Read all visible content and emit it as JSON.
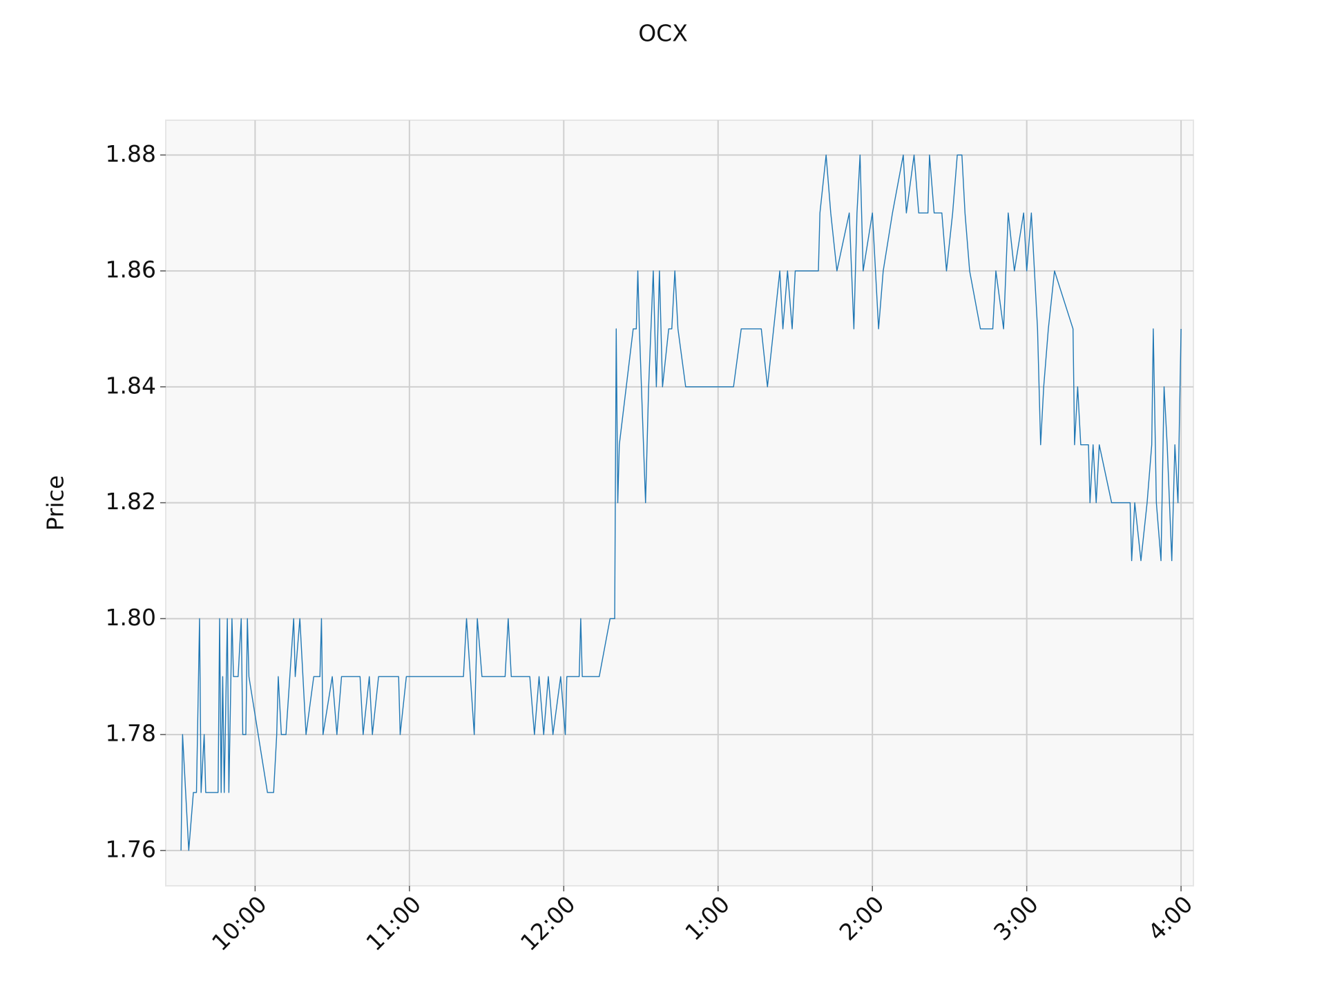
{
  "chart_data": {
    "type": "line",
    "title": "OCX",
    "y_label": "Price",
    "xlim": [
      9.421,
      16.08
    ],
    "ylim": [
      1.7539,
      1.886
    ],
    "xticks": [
      {
        "value": 10,
        "label": "10:00"
      },
      {
        "value": 11,
        "label": "11:00"
      },
      {
        "value": 12,
        "label": "12:00"
      },
      {
        "value": 13,
        "label": "1:00"
      },
      {
        "value": 14,
        "label": "2:00"
      },
      {
        "value": 15,
        "label": "3:00"
      },
      {
        "value": 16,
        "label": "4:00"
      }
    ],
    "yticks": [
      {
        "value": 1.76,
        "label": "1.76"
      },
      {
        "value": 1.78,
        "label": "1.78"
      },
      {
        "value": 1.8,
        "label": "1.80"
      },
      {
        "value": 1.82,
        "label": "1.82"
      },
      {
        "value": 1.84,
        "label": "1.84"
      },
      {
        "value": 1.86,
        "label": "1.86"
      },
      {
        "value": 1.88,
        "label": "1.88"
      }
    ],
    "grid": true,
    "series": [
      {
        "color": "#1f77b4",
        "x": [
          9.52,
          9.53,
          9.57,
          9.6,
          9.62,
          9.64,
          9.65,
          9.67,
          9.68,
          9.76,
          9.77,
          9.78,
          9.79,
          9.8,
          9.82,
          9.83,
          9.85,
          9.86,
          9.89,
          9.91,
          9.92,
          9.94,
          9.95,
          9.96,
          10.08,
          10.12,
          10.14,
          10.15,
          10.17,
          10.2,
          10.25,
          10.26,
          10.29,
          10.33,
          10.38,
          10.42,
          10.43,
          10.44,
          10.5,
          10.53,
          10.56,
          10.68,
          10.7,
          10.74,
          10.76,
          10.8,
          10.93,
          10.94,
          10.98,
          11.35,
          11.37,
          11.42,
          11.44,
          11.47,
          11.62,
          11.64,
          11.66,
          11.78,
          11.81,
          11.84,
          11.87,
          11.9,
          11.93,
          11.98,
          12.01,
          12.02,
          12.1,
          12.11,
          12.12,
          12.23,
          12.3,
          12.33,
          12.34,
          12.35,
          12.36,
          12.45,
          12.47,
          12.48,
          12.49,
          12.53,
          12.55,
          12.58,
          12.6,
          12.62,
          12.64,
          12.68,
          12.7,
          12.72,
          12.74,
          12.79,
          13.1,
          13.15,
          13.28,
          13.32,
          13.4,
          13.42,
          13.45,
          13.48,
          13.5,
          13.65,
          13.66,
          13.7,
          13.73,
          13.77,
          13.85,
          13.88,
          13.9,
          13.92,
          13.94,
          14.0,
          14.04,
          14.07,
          14.13,
          14.2,
          14.22,
          14.27,
          14.3,
          14.36,
          14.37,
          14.4,
          14.45,
          14.48,
          14.52,
          14.55,
          14.58,
          14.6,
          14.63,
          14.7,
          14.78,
          14.8,
          14.85,
          14.88,
          14.92,
          14.98,
          15.0,
          15.03,
          15.05,
          15.07,
          15.09,
          15.11,
          15.14,
          15.18,
          15.3,
          15.31,
          15.33,
          15.35,
          15.4,
          15.41,
          15.43,
          15.45,
          15.47,
          15.55,
          15.67,
          15.68,
          15.7,
          15.74,
          15.78,
          15.81,
          15.82,
          15.84,
          15.87,
          15.89,
          15.91,
          15.94,
          15.96,
          15.98,
          16.0
        ],
        "values": [
          1.76,
          1.78,
          1.76,
          1.77,
          1.77,
          1.8,
          1.77,
          1.78,
          1.77,
          1.77,
          1.8,
          1.77,
          1.79,
          1.77,
          1.8,
          1.77,
          1.8,
          1.79,
          1.79,
          1.8,
          1.78,
          1.78,
          1.8,
          1.79,
          1.77,
          1.77,
          1.78,
          1.79,
          1.78,
          1.78,
          1.8,
          1.79,
          1.8,
          1.78,
          1.79,
          1.79,
          1.8,
          1.78,
          1.79,
          1.78,
          1.79,
          1.79,
          1.78,
          1.79,
          1.78,
          1.79,
          1.79,
          1.78,
          1.79,
          1.79,
          1.8,
          1.78,
          1.8,
          1.79,
          1.79,
          1.8,
          1.79,
          1.79,
          1.78,
          1.79,
          1.78,
          1.79,
          1.78,
          1.79,
          1.78,
          1.79,
          1.79,
          1.8,
          1.79,
          1.79,
          1.8,
          1.8,
          1.85,
          1.82,
          1.83,
          1.85,
          1.85,
          1.86,
          1.85,
          1.82,
          1.84,
          1.86,
          1.84,
          1.86,
          1.84,
          1.85,
          1.85,
          1.86,
          1.85,
          1.84,
          1.84,
          1.85,
          1.85,
          1.84,
          1.86,
          1.85,
          1.86,
          1.85,
          1.86,
          1.86,
          1.87,
          1.88,
          1.87,
          1.86,
          1.87,
          1.85,
          1.87,
          1.88,
          1.86,
          1.87,
          1.85,
          1.86,
          1.87,
          1.88,
          1.87,
          1.88,
          1.87,
          1.87,
          1.88,
          1.87,
          1.87,
          1.86,
          1.87,
          1.88,
          1.88,
          1.87,
          1.86,
          1.85,
          1.85,
          1.86,
          1.85,
          1.87,
          1.86,
          1.87,
          1.86,
          1.87,
          1.86,
          1.85,
          1.83,
          1.84,
          1.85,
          1.86,
          1.85,
          1.83,
          1.84,
          1.83,
          1.83,
          1.82,
          1.83,
          1.82,
          1.83,
          1.82,
          1.82,
          1.81,
          1.82,
          1.81,
          1.82,
          1.83,
          1.85,
          1.82,
          1.81,
          1.84,
          1.83,
          1.81,
          1.83,
          1.82,
          1.85
        ]
      }
    ]
  }
}
